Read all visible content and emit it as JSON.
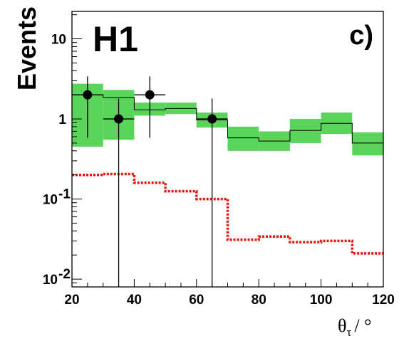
{
  "chart_data": {
    "type": "histogram",
    "ylabel": "Events",
    "xlabel_symbol": "θ",
    "xlabel_subscript": "τ",
    "xlabel_unit": "/ °",
    "experiment_label": "H1",
    "panel_label": "c)",
    "xlim": [
      20,
      120
    ],
    "ylim": [
      0.008,
      22
    ],
    "yscale": "log",
    "x_ticks": [
      "20",
      "40",
      "60",
      "80",
      "100",
      "120"
    ],
    "y_ticks": [
      {
        "value": 10,
        "label": "10"
      },
      {
        "value": 1,
        "label": "1"
      },
      {
        "value": 0.1,
        "label": "10",
        "exp": "-1"
      },
      {
        "value": 0.01,
        "label": "10",
        "exp": "-2"
      }
    ],
    "bin_edges": [
      20,
      30,
      40,
      50,
      60,
      70,
      80,
      90,
      100,
      110,
      120
    ],
    "series": [
      {
        "name": "",
        "kind": "prediction_band",
        "color": "#5ad45a",
        "line_color": "#000000",
        "values": [
          2.0,
          1.85,
          1.3,
          1.35,
          0.97,
          0.58,
          0.53,
          0.72,
          0.88,
          0.5
        ],
        "band_low": [
          0.45,
          0.55,
          1.1,
          1.15,
          0.78,
          0.4,
          0.4,
          0.5,
          0.65,
          0.35
        ],
        "band_high": [
          2.75,
          2.3,
          1.6,
          1.6,
          1.2,
          0.8,
          0.7,
          1.0,
          1.2,
          0.68
        ]
      },
      {
        "name": "",
        "kind": "dotted_step",
        "color": "#e8140c",
        "values": [
          0.2,
          0.205,
          0.16,
          0.125,
          0.1,
          0.031,
          0.034,
          0.029,
          0.03,
          0.021
        ]
      },
      {
        "name": "",
        "kind": "data_points",
        "color": "#000000",
        "points": [
          {
            "x": 25,
            "y": 2,
            "ylo": 0.58,
            "yhi": 3.4,
            "xerr": 5
          },
          {
            "x": 35,
            "y": 1,
            "ylo": 0.0001,
            "yhi": 1.8,
            "xerr": 5
          },
          {
            "x": 45,
            "y": 2,
            "ylo": 0.58,
            "yhi": 3.4,
            "xerr": 5
          },
          {
            "x": 65,
            "y": 1,
            "ylo": 0.0001,
            "yhi": 1.8,
            "xerr": 5
          }
        ]
      }
    ]
  }
}
